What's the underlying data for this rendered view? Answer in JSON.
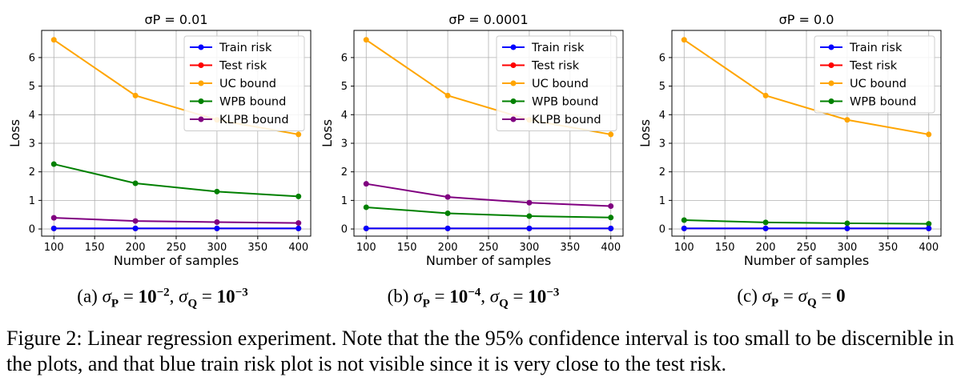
{
  "chart_data": [
    {
      "type": "line",
      "title": "σP = 0.01",
      "xlabel": "Number of samples",
      "ylabel": "Loss",
      "x": [
        100,
        200,
        300,
        400
      ],
      "xlim": [
        85,
        415
      ],
      "ylim": [
        -0.25,
        6.95
      ],
      "xticks": [
        100,
        150,
        200,
        250,
        300,
        350,
        400
      ],
      "yticks": [
        0,
        1,
        2,
        3,
        4,
        5,
        6
      ],
      "grid": true,
      "legend_position": "upper-right",
      "series": [
        {
          "name": "Train risk",
          "color": "#0000ff",
          "values": [
            0.02,
            0.02,
            0.02,
            0.02
          ]
        },
        {
          "name": "Test risk",
          "color": "#ff0000",
          "values": [
            0.02,
            0.02,
            0.02,
            0.02
          ]
        },
        {
          "name": "UC bound",
          "color": "#ffa500",
          "values": [
            6.62,
            4.67,
            3.82,
            3.31
          ]
        },
        {
          "name": "WPB bound",
          "color": "#008000",
          "values": [
            2.27,
            1.6,
            1.31,
            1.14
          ]
        },
        {
          "name": "KLPB bound",
          "color": "#800080",
          "values": [
            0.39,
            0.28,
            0.24,
            0.21
          ]
        }
      ]
    },
    {
      "type": "line",
      "title": "σP = 0.0001",
      "xlabel": "Number of samples",
      "ylabel": "Loss",
      "x": [
        100,
        200,
        300,
        400
      ],
      "xlim": [
        85,
        415
      ],
      "ylim": [
        -0.25,
        6.95
      ],
      "xticks": [
        100,
        150,
        200,
        250,
        300,
        350,
        400
      ],
      "yticks": [
        0,
        1,
        2,
        3,
        4,
        5,
        6
      ],
      "grid": true,
      "legend_position": "upper-right",
      "series": [
        {
          "name": "Train risk",
          "color": "#0000ff",
          "values": [
            0.02,
            0.02,
            0.02,
            0.02
          ]
        },
        {
          "name": "Test risk",
          "color": "#ff0000",
          "values": [
            0.02,
            0.02,
            0.02,
            0.02
          ]
        },
        {
          "name": "UC bound",
          "color": "#ffa500",
          "values": [
            6.62,
            4.67,
            3.82,
            3.31
          ]
        },
        {
          "name": "WPB bound",
          "color": "#008000",
          "values": [
            0.76,
            0.55,
            0.45,
            0.4
          ]
        },
        {
          "name": "KLPB bound",
          "color": "#800080",
          "values": [
            1.58,
            1.12,
            0.92,
            0.8
          ]
        }
      ]
    },
    {
      "type": "line",
      "title": "σP = 0.0",
      "xlabel": "Number of samples",
      "ylabel": "Loss",
      "x": [
        100,
        200,
        300,
        400
      ],
      "xlim": [
        85,
        415
      ],
      "ylim": [
        -0.25,
        6.95
      ],
      "xticks": [
        100,
        150,
        200,
        250,
        300,
        350,
        400
      ],
      "yticks": [
        0,
        1,
        2,
        3,
        4,
        5,
        6
      ],
      "grid": true,
      "legend_position": "upper-right",
      "series": [
        {
          "name": "Train risk",
          "color": "#0000ff",
          "values": [
            0.02,
            0.02,
            0.02,
            0.02
          ]
        },
        {
          "name": "Test risk",
          "color": "#ff0000",
          "values": [
            0.02,
            0.02,
            0.02,
            0.02
          ]
        },
        {
          "name": "UC bound",
          "color": "#ffa500",
          "values": [
            6.62,
            4.67,
            3.82,
            3.31
          ]
        },
        {
          "name": "WPB bound",
          "color": "#008000",
          "values": [
            0.31,
            0.23,
            0.2,
            0.18
          ]
        }
      ]
    }
  ],
  "subcaptions": [
    {
      "label": "(a)",
      "sigma_p": "10",
      "sigma_p_exp": "−2",
      "sigma_q": "10",
      "sigma_q_exp": "−3"
    },
    {
      "label": "(b)",
      "sigma_p": "10",
      "sigma_p_exp": "−4",
      "sigma_q": "10",
      "sigma_q_exp": "−3"
    },
    {
      "label": "(c)",
      "value": "0"
    }
  ],
  "figure_caption": "Figure 2: Linear regression experiment. Note that the the 95% confidence interval is too small to be discernible in the plots, and that blue train risk plot is not visible since it is very close to the test risk."
}
